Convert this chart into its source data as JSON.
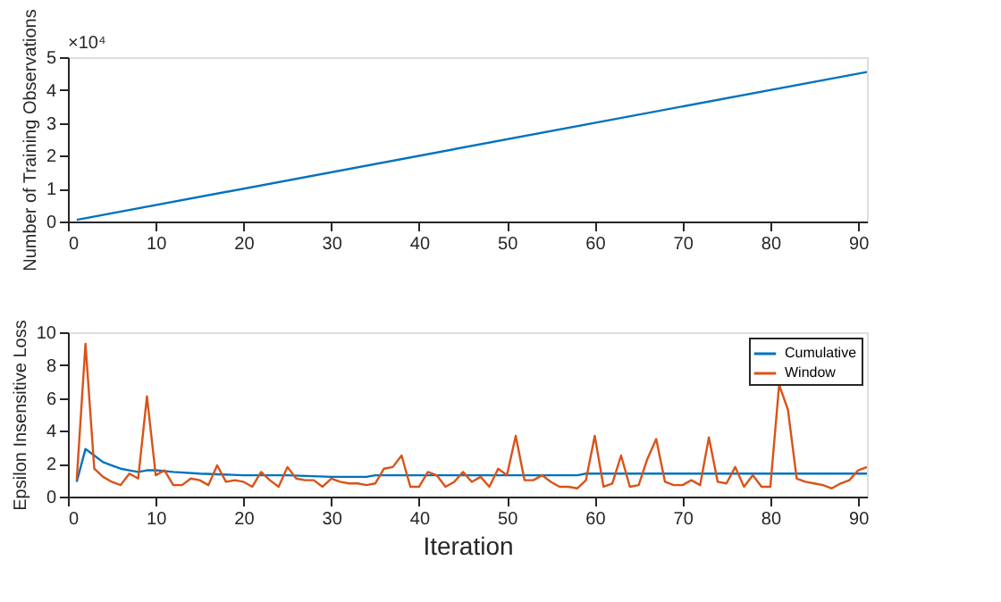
{
  "chart_data": [
    {
      "type": "line",
      "ylabel": "Number of Training Observations",
      "annotations": [
        "×10⁴"
      ],
      "xlim": [
        0,
        91
      ],
      "xticks": [
        0,
        10,
        20,
        30,
        40,
        50,
        60,
        70,
        80,
        90
      ],
      "ylim": [
        0,
        5
      ],
      "yticks": [
        0,
        1,
        2,
        3,
        4,
        5
      ],
      "grid": false,
      "series": [
        {
          "color": "#0072bd",
          "x": [
            1,
            91
          ],
          "values": [
            0.05,
            4.55
          ]
        }
      ]
    },
    {
      "type": "line",
      "xlabel": "Iteration",
      "ylabel": "Epsilon Insensitive Loss",
      "xlim": [
        0,
        91
      ],
      "xticks": [
        0,
        10,
        20,
        30,
        40,
        50,
        60,
        70,
        80,
        90
      ],
      "ylim": [
        0,
        10
      ],
      "yticks": [
        0,
        2,
        4,
        6,
        8,
        10
      ],
      "grid": false,
      "legend": "top right",
      "series": [
        {
          "name": "Cumulative",
          "color": "#0072bd",
          "x": [
            1,
            2,
            3,
            4,
            5,
            6,
            7,
            8,
            9,
            10,
            12,
            15,
            20,
            25,
            30,
            34,
            35,
            58,
            59,
            91
          ],
          "values": [
            0.9,
            2.9,
            2.5,
            2.1,
            1.9,
            1.7,
            1.6,
            1.5,
            1.6,
            1.6,
            1.5,
            1.4,
            1.3,
            1.3,
            1.2,
            1.2,
            1.3,
            1.3,
            1.4,
            1.4
          ]
        },
        {
          "name": "Window",
          "color": "#d95319",
          "x": [
            1,
            2,
            3,
            4,
            5,
            6,
            7,
            8,
            9,
            10,
            11,
            12,
            13,
            14,
            15,
            16,
            17,
            18,
            19,
            20,
            21,
            22,
            23,
            24,
            25,
            26,
            27,
            28,
            29,
            30,
            31,
            32,
            33,
            34,
            35,
            36,
            37,
            38,
            39,
            40,
            41,
            42,
            43,
            44,
            45,
            46,
            47,
            48,
            49,
            50,
            51,
            52,
            53,
            54,
            55,
            56,
            57,
            58,
            59,
            60,
            61,
            62,
            63,
            64,
            65,
            66,
            67,
            68,
            69,
            70,
            71,
            72,
            73,
            74,
            75,
            76,
            77,
            78,
            79,
            80,
            81,
            82,
            83,
            84,
            85,
            86,
            87,
            88,
            89,
            90,
            91
          ],
          "values": [
            1.0,
            9.3,
            1.7,
            1.2,
            0.9,
            0.7,
            1.4,
            1.1,
            6.1,
            1.3,
            1.6,
            0.7,
            0.7,
            1.1,
            1.0,
            0.7,
            1.9,
            0.9,
            1.0,
            0.9,
            0.6,
            1.5,
            1.0,
            0.6,
            1.8,
            1.1,
            1.0,
            1.0,
            0.6,
            1.1,
            0.9,
            0.8,
            0.8,
            0.7,
            0.8,
            1.7,
            1.8,
            2.5,
            0.6,
            0.6,
            1.5,
            1.3,
            0.6,
            0.9,
            1.5,
            0.9,
            1.2,
            0.6,
            1.7,
            1.3,
            3.7,
            1.0,
            1.0,
            1.3,
            0.9,
            0.6,
            0.6,
            0.5,
            1.0,
            3.7,
            0.6,
            0.8,
            2.5,
            0.6,
            0.7,
            2.3,
            3.5,
            0.9,
            0.7,
            0.7,
            1.0,
            0.7,
            3.6,
            0.9,
            0.8,
            1.8,
            0.6,
            1.3,
            0.6,
            0.6,
            6.8,
            5.3,
            1.1,
            0.9,
            0.8,
            0.7,
            0.5,
            0.8,
            1.0,
            1.6,
            1.8
          ]
        }
      ]
    }
  ]
}
